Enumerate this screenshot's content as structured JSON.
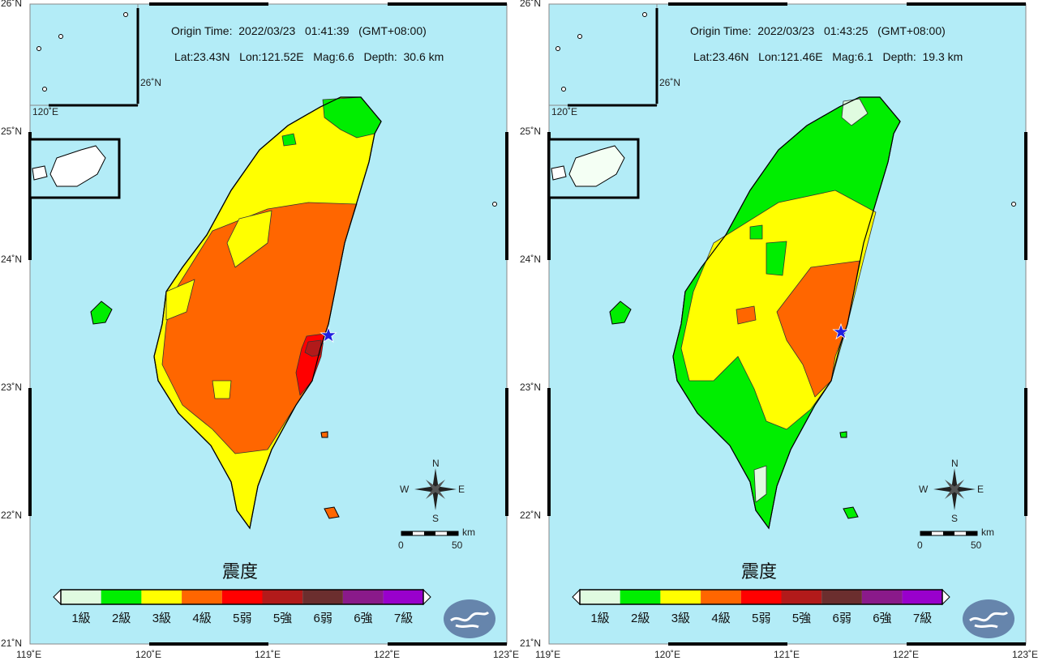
{
  "legend": {
    "title": "震度",
    "levels": [
      {
        "label": "1級",
        "color": "#e0fbe0"
      },
      {
        "label": "2級",
        "color": "#00ee00"
      },
      {
        "label": "3級",
        "color": "#ffff00"
      },
      {
        "label": "4級",
        "color": "#ff6600"
      },
      {
        "label": "5弱",
        "color": "#ff0000"
      },
      {
        "label": "5強",
        "color": "#b21a1a"
      },
      {
        "label": "6弱",
        "color": "#6b2e2e"
      },
      {
        "label": "6強",
        "color": "#8a1a8a"
      },
      {
        "label": "7級",
        "color": "#9900cc"
      }
    ]
  },
  "axes": {
    "lon_ticks": [
      "119˚E",
      "120˚E",
      "121˚E",
      "122˚E",
      "123˚E"
    ],
    "lat_ticks": [
      "26˚N",
      "25˚N",
      "24˚N",
      "23˚N",
      "22˚N",
      "21˚N"
    ],
    "inset_lat": "26˚N",
    "inset_lon": "120˚E"
  },
  "compass": {
    "n": "N",
    "s": "S",
    "e": "E",
    "w": "W"
  },
  "scale": {
    "unit": "km",
    "min": "0",
    "max": "50"
  },
  "colors": {
    "sea": "#b3ecf7"
  },
  "panels": [
    {
      "origin_time": "Origin Time:  2022/03/23   01:41:39   (GMT+08:00)",
      "params": "Lat:23.43N   Lon:121.52E   Mag:6.6   Depth:  30.6 km"
    },
    {
      "origin_time": "Origin Time:  2022/03/23   01:43:25   (GMT+08:00)",
      "params": "Lat:23.46N   Lon:121.46E   Mag:6.1   Depth:  19.3 km"
    }
  ]
}
